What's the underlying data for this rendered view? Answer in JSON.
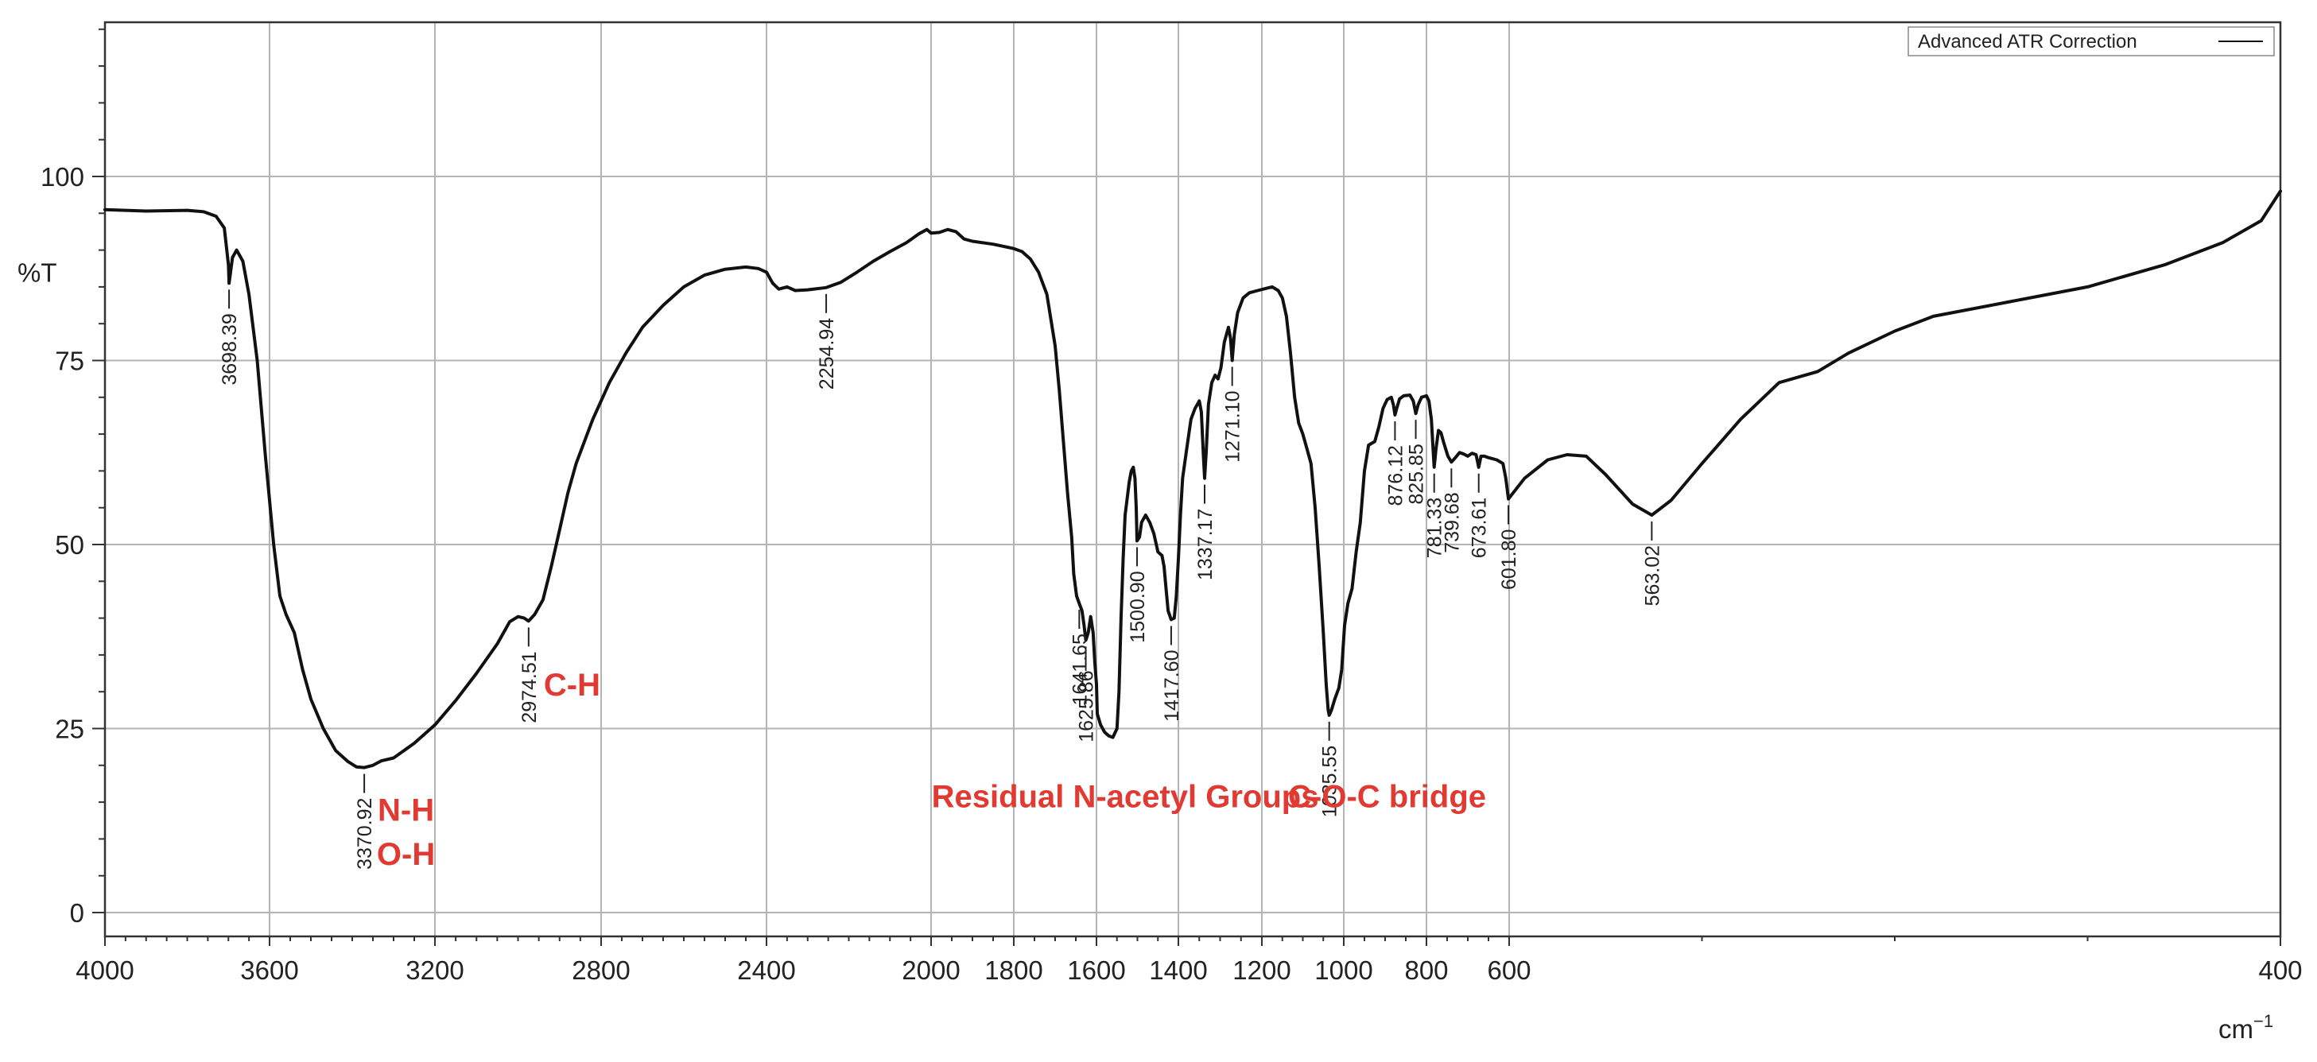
{
  "chart_data": {
    "type": "line",
    "ylabel": "%T",
    "xunit": "cm",
    "xunit_sup": "−1",
    "xlim": [
      4000,
      400
    ],
    "ylim": [
      -3,
      120
    ],
    "x_ticks": [
      4000,
      3600,
      3200,
      2800,
      2400,
      2000,
      1800,
      1600,
      1400,
      1200,
      1000,
      800,
      600,
      400
    ],
    "x_tick_labels": [
      "4000",
      "3600",
      "3200",
      "2800",
      "2400",
      "2000",
      "1800",
      "1600",
      "1400",
      "1200",
      "1000",
      "800",
      "600",
      "400"
    ],
    "y_ticks": [
      0,
      25,
      50,
      75,
      100
    ],
    "y_tick_labels": [
      "0",
      "25",
      "50",
      "75",
      "100"
    ],
    "grid": true,
    "legend": {
      "label": "Advanced ATR Correction",
      "placement": "top-right"
    },
    "series": [
      {
        "name": "Advanced ATR Correction",
        "color": "#111111",
        "points": [
          [
            4000,
            95.5
          ],
          [
            3900,
            95.3
          ],
          [
            3800,
            95.4
          ],
          [
            3760,
            95.2
          ],
          [
            3730,
            94.6
          ],
          [
            3710,
            93
          ],
          [
            3700,
            88
          ],
          [
            3698.39,
            85.5
          ],
          [
            3690,
            89
          ],
          [
            3680,
            90
          ],
          [
            3665,
            88.5
          ],
          [
            3650,
            84
          ],
          [
            3630,
            75
          ],
          [
            3610,
            62
          ],
          [
            3590,
            50
          ],
          [
            3575,
            43
          ],
          [
            3560,
            40.5
          ],
          [
            3540,
            38
          ],
          [
            3520,
            33
          ],
          [
            3500,
            29
          ],
          [
            3470,
            25
          ],
          [
            3440,
            22
          ],
          [
            3410,
            20.5
          ],
          [
            3390,
            19.8
          ],
          [
            3370.92,
            19.7
          ],
          [
            3350,
            20
          ],
          [
            3330,
            20.6
          ],
          [
            3300,
            21
          ],
          [
            3250,
            23
          ],
          [
            3200,
            25.5
          ],
          [
            3150,
            28.8
          ],
          [
            3100,
            32.5
          ],
          [
            3050,
            36.5
          ],
          [
            3020,
            39.5
          ],
          [
            3000,
            40.2
          ],
          [
            2985,
            40
          ],
          [
            2974.51,
            39.6
          ],
          [
            2960,
            40.5
          ],
          [
            2940,
            42.5
          ],
          [
            2920,
            47
          ],
          [
            2900,
            52
          ],
          [
            2880,
            57
          ],
          [
            2860,
            61
          ],
          [
            2820,
            67
          ],
          [
            2780,
            72
          ],
          [
            2740,
            76
          ],
          [
            2700,
            79.5
          ],
          [
            2650,
            82.5
          ],
          [
            2600,
            85
          ],
          [
            2550,
            86.6
          ],
          [
            2500,
            87.4
          ],
          [
            2450,
            87.7
          ],
          [
            2420,
            87.5
          ],
          [
            2400,
            87
          ],
          [
            2385,
            85.5
          ],
          [
            2370,
            84.7
          ],
          [
            2350,
            85
          ],
          [
            2330,
            84.5
          ],
          [
            2300,
            84.6
          ],
          [
            2254.94,
            84.9
          ],
          [
            2220,
            85.6
          ],
          [
            2180,
            87
          ],
          [
            2140,
            88.5
          ],
          [
            2100,
            89.8
          ],
          [
            2060,
            91
          ],
          [
            2030,
            92.2
          ],
          [
            2010,
            92.8
          ],
          [
            2000,
            92.3
          ],
          [
            1980,
            92.4
          ],
          [
            1960,
            92.8
          ],
          [
            1940,
            92.5
          ],
          [
            1920,
            91.5
          ],
          [
            1900,
            91.2
          ],
          [
            1850,
            90.8
          ],
          [
            1800,
            90.2
          ],
          [
            1780,
            89.8
          ],
          [
            1760,
            88.8
          ],
          [
            1740,
            87
          ],
          [
            1720,
            84
          ],
          [
            1700,
            77
          ],
          [
            1690,
            71
          ],
          [
            1680,
            64
          ],
          [
            1670,
            57
          ],
          [
            1660,
            51
          ],
          [
            1655,
            46
          ],
          [
            1648,
            43
          ],
          [
            1641.65,
            42
          ],
          [
            1635,
            41
          ],
          [
            1630,
            39
          ],
          [
            1625.86,
            37
          ],
          [
            1620,
            38
          ],
          [
            1614,
            40.2
          ],
          [
            1608,
            38
          ],
          [
            1604,
            34
          ],
          [
            1600,
            31
          ],
          [
            1598,
            27
          ],
          [
            1590,
            25.5
          ],
          [
            1580,
            24.5
          ],
          [
            1570,
            24
          ],
          [
            1560,
            23.8
          ],
          [
            1550,
            25
          ],
          [
            1545,
            30
          ],
          [
            1540,
            40
          ],
          [
            1535,
            48
          ],
          [
            1530,
            54
          ],
          [
            1520,
            58.5
          ],
          [
            1515,
            60
          ],
          [
            1510,
            60.5
          ],
          [
            1506,
            59
          ],
          [
            1503,
            55
          ],
          [
            1500.9,
            50.5
          ],
          [
            1495,
            51
          ],
          [
            1490,
            53
          ],
          [
            1480,
            54
          ],
          [
            1470,
            53
          ],
          [
            1460,
            51.5
          ],
          [
            1450,
            49
          ],
          [
            1440,
            48.5
          ],
          [
            1435,
            47
          ],
          [
            1430,
            44
          ],
          [
            1425,
            41
          ],
          [
            1417.6,
            39.8
          ],
          [
            1410,
            40
          ],
          [
            1405,
            43
          ],
          [
            1400,
            48
          ],
          [
            1395,
            54
          ],
          [
            1390,
            59
          ],
          [
            1380,
            63
          ],
          [
            1370,
            67
          ],
          [
            1360,
            68.5
          ],
          [
            1350,
            69.5
          ],
          [
            1345,
            68
          ],
          [
            1340,
            62
          ],
          [
            1337.17,
            59
          ],
          [
            1333,
            63
          ],
          [
            1328,
            69
          ],
          [
            1320,
            72
          ],
          [
            1312,
            73
          ],
          [
            1305,
            72.5
          ],
          [
            1298,
            74
          ],
          [
            1290,
            77.5
          ],
          [
            1280,
            79.5
          ],
          [
            1275,
            78
          ],
          [
            1271.1,
            75
          ],
          [
            1266,
            78.5
          ],
          [
            1258,
            81.5
          ],
          [
            1245,
            83.5
          ],
          [
            1230,
            84.2
          ],
          [
            1210,
            84.5
          ],
          [
            1190,
            84.8
          ],
          [
            1175,
            85
          ],
          [
            1160,
            84.5
          ],
          [
            1150,
            83.5
          ],
          [
            1140,
            81
          ],
          [
            1130,
            76
          ],
          [
            1120,
            70
          ],
          [
            1110,
            66.5
          ],
          [
            1100,
            65
          ],
          [
            1090,
            63
          ],
          [
            1080,
            61
          ],
          [
            1070,
            55
          ],
          [
            1060,
            47
          ],
          [
            1050,
            38
          ],
          [
            1043,
            31
          ],
          [
            1038,
            27.5
          ],
          [
            1035.55,
            26.8
          ],
          [
            1030,
            27.5
          ],
          [
            1022,
            29
          ],
          [
            1012,
            30.5
          ],
          [
            1005,
            33
          ],
          [
            998,
            39
          ],
          [
            990,
            42
          ],
          [
            980,
            44
          ],
          [
            970,
            49
          ],
          [
            960,
            53
          ],
          [
            950,
            60
          ],
          [
            940,
            63.5
          ],
          [
            925,
            64
          ],
          [
            915,
            66
          ],
          [
            905,
            68.5
          ],
          [
            895,
            69.7
          ],
          [
            885,
            70
          ],
          [
            880,
            69
          ],
          [
            876.12,
            67.6
          ],
          [
            872,
            68.5
          ],
          [
            865,
            69.8
          ],
          [
            855,
            70.2
          ],
          [
            840,
            70.3
          ],
          [
            832,
            69.5
          ],
          [
            825.85,
            67.8
          ],
          [
            820,
            69
          ],
          [
            812,
            70
          ],
          [
            800,
            70.2
          ],
          [
            794,
            69.5
          ],
          [
            788,
            67
          ],
          [
            784,
            63
          ],
          [
            781.33,
            60.5
          ],
          [
            777,
            63
          ],
          [
            771,
            65.5
          ],
          [
            765,
            65.2
          ],
          [
            758,
            63.8
          ],
          [
            748,
            62
          ],
          [
            739.68,
            61.2
          ],
          [
            730,
            61.8
          ],
          [
            720,
            62.5
          ],
          [
            710,
            62.3
          ],
          [
            700,
            62
          ],
          [
            690,
            62.4
          ],
          [
            680,
            62.2
          ],
          [
            673.61,
            60.5
          ],
          [
            668,
            62
          ],
          [
            660,
            62
          ],
          [
            650,
            61.8
          ],
          [
            630,
            61.5
          ],
          [
            615,
            61
          ],
          [
            608,
            59
          ],
          [
            601.8,
            56.2
          ],
          [
            596,
            59
          ],
          [
            590,
            61.5
          ],
          [
            585,
            62.2
          ],
          [
            580,
            62
          ],
          [
            575,
            59.5
          ],
          [
            568,
            55.5
          ],
          [
            563.02,
            54
          ],
          [
            558,
            56
          ],
          [
            550,
            61
          ],
          [
            540,
            67
          ],
          [
            530,
            72
          ],
          [
            520,
            73.5
          ],
          [
            512,
            76
          ],
          [
            500,
            79
          ],
          [
            490,
            81
          ],
          [
            470,
            83
          ],
          [
            450,
            85
          ],
          [
            430,
            88
          ],
          [
            415,
            91
          ],
          [
            405,
            94
          ],
          [
            400,
            98
          ]
        ]
      }
    ],
    "peaks": [
      {
        "x": 3698.39,
        "y": 85.5,
        "label": "3698.39"
      },
      {
        "x": 3370.92,
        "y": 19.7,
        "label": "3370.92"
      },
      {
        "x": 2974.51,
        "y": 39.6,
        "label": "2974.51"
      },
      {
        "x": 2254.94,
        "y": 84.9,
        "label": "2254.94"
      },
      {
        "x": 1641.65,
        "y": 42.0,
        "label": "1641.65"
      },
      {
        "x": 1625.86,
        "y": 37.0,
        "label": "1625.86"
      },
      {
        "x": 1500.9,
        "y": 50.5,
        "label": "1500.90"
      },
      {
        "x": 1417.6,
        "y": 39.8,
        "label": "1417.60"
      },
      {
        "x": 1337.17,
        "y": 59.0,
        "label": "1337.17"
      },
      {
        "x": 1271.1,
        "y": 75.0,
        "label": "1271.10"
      },
      {
        "x": 1035.55,
        "y": 26.8,
        "label": "1035.55"
      },
      {
        "x": 876.12,
        "y": 67.6,
        "label": "876.12"
      },
      {
        "x": 825.85,
        "y": 67.8,
        "label": "825.85"
      },
      {
        "x": 781.33,
        "y": 60.5,
        "label": "781.33"
      },
      {
        "x": 739.68,
        "y": 61.2,
        "label": "739.68"
      },
      {
        "x": 673.61,
        "y": 60.5,
        "label": "673.61"
      },
      {
        "x": 601.8,
        "y": 56.2,
        "label": "601.80"
      },
      {
        "x": 563.02,
        "y": 54.0,
        "label": "563.02"
      }
    ],
    "annotations": [
      {
        "text": "N-H",
        "x": 3270,
        "y": 12.5
      },
      {
        "text": "O-H",
        "x": 3270,
        "y": 6.5
      },
      {
        "text": "C-H",
        "x": 2870,
        "y": 29.5
      },
      {
        "text": "Residual N-acetyl Groups",
        "x": 1530,
        "y": 14.3
      },
      {
        "text": "C-O-C bridge",
        "x": 895,
        "y": 14.3
      }
    ],
    "colors": {
      "line": "#111111",
      "annotation": "#e03a33",
      "grid": "#b4b4b4"
    }
  }
}
